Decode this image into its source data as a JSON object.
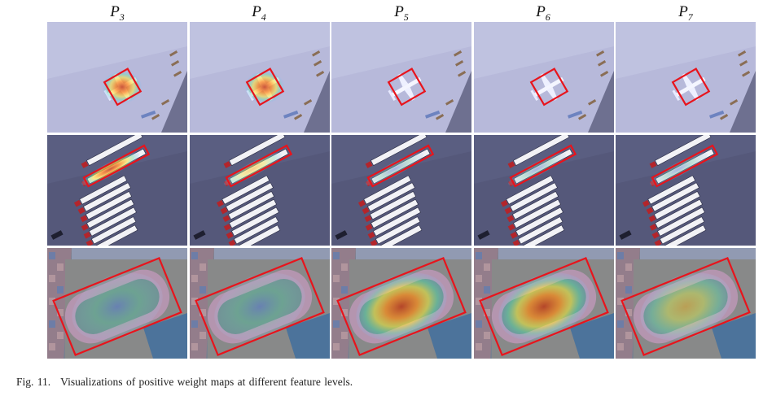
{
  "column_headers": [
    {
      "base": "P",
      "sub": "3"
    },
    {
      "base": "P",
      "sub": "4"
    },
    {
      "base": "P",
      "sub": "5"
    },
    {
      "base": "P",
      "sub": "6"
    },
    {
      "base": "P",
      "sub": "7"
    }
  ],
  "rows": [
    {
      "scene": "airplane"
    },
    {
      "scene": "trucks"
    },
    {
      "scene": "stadium"
    }
  ],
  "heat_levels": {
    "airplane": [
      0.95,
      0.85,
      0.1,
      0.05,
      0.05
    ],
    "trucks": [
      0.95,
      0.55,
      0.35,
      0.45,
      0.3
    ],
    "stadium": [
      0.35,
      0.45,
      0.95,
      1.0,
      0.6
    ]
  },
  "colors": {
    "box": "#e8141c",
    "airfield": "#b7b9da",
    "asphalt": "#55587a",
    "grass": "#4f7a5a"
  },
  "caption": {
    "label": "Fig. 11.",
    "text": "Visualizations of positive weight maps at different feature levels."
  }
}
